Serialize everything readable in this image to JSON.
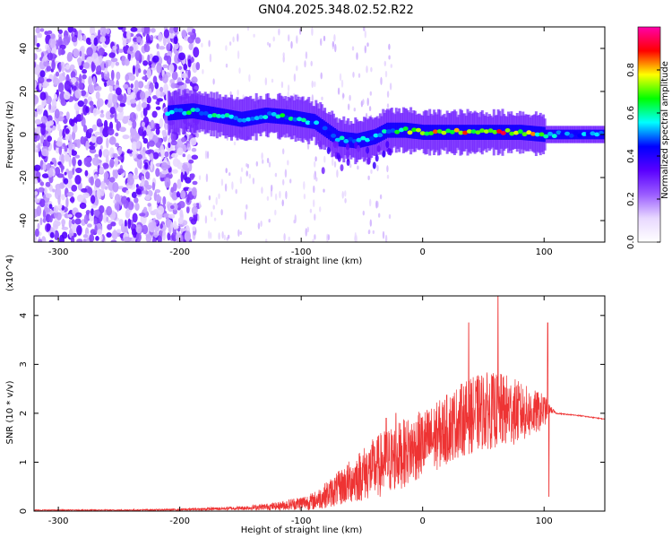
{
  "title": "GN04.2025.348.02.52.R22",
  "chart_data": [
    {
      "id": "spectrogram",
      "type": "heatmap",
      "xlabel": "Height of straight line (km)",
      "ylabel": "Frequency (Hz)",
      "xlim": [
        -320,
        150
      ],
      "ylim": [
        -50,
        50
      ],
      "xticks": [
        -300,
        -200,
        -100,
        0,
        100
      ],
      "yticks": [
        -40,
        -20,
        0,
        20,
        40
      ],
      "colorscale": [
        "#ffffff",
        "#e8d8ff",
        "#9a5cff",
        "#5a00ff",
        "#0000ff",
        "#00ffff",
        "#00ff00",
        "#ffff00",
        "#ff0000",
        "#ff00aa"
      ],
      "colorbar": {
        "label": "Normalized spectral amplitude",
        "range": [
          0,
          1
        ],
        "ticks": [
          "0.0",
          "0.2",
          "0.4",
          "0.6",
          "0.8"
        ]
      },
      "noise_region_x": [
        -320,
        -185
      ],
      "signal_track": [
        {
          "x": -210,
          "y": 10,
          "amp": 0.55
        },
        {
          "x": -190,
          "y": 11,
          "amp": 0.6
        },
        {
          "x": -170,
          "y": 9,
          "amp": 0.6
        },
        {
          "x": -150,
          "y": 7,
          "amp": 0.55
        },
        {
          "x": -130,
          "y": 9,
          "amp": 0.6
        },
        {
          "x": -110,
          "y": 8,
          "amp": 0.6
        },
        {
          "x": -90,
          "y": 6,
          "amp": 0.55
        },
        {
          "x": -80,
          "y": 2,
          "amp": 0.55
        },
        {
          "x": -70,
          "y": -2,
          "amp": 0.6
        },
        {
          "x": -55,
          "y": -3,
          "amp": 0.6
        },
        {
          "x": -40,
          "y": -1,
          "amp": 0.5
        },
        {
          "x": -30,
          "y": 2,
          "amp": 0.6
        },
        {
          "x": -15,
          "y": 2,
          "amp": 0.7
        },
        {
          "x": 0,
          "y": 1,
          "amp": 0.8
        },
        {
          "x": 20,
          "y": 1,
          "amp": 0.85
        },
        {
          "x": 40,
          "y": 1,
          "amp": 0.85
        },
        {
          "x": 60,
          "y": 1,
          "amp": 0.9
        },
        {
          "x": 80,
          "y": 1,
          "amp": 0.85
        },
        {
          "x": 100,
          "y": 0,
          "amp": 0.7
        },
        {
          "x": 120,
          "y": 0,
          "amp": 0.5
        },
        {
          "x": 150,
          "y": 0,
          "amp": 0.5
        }
      ]
    },
    {
      "id": "snr",
      "type": "line",
      "xlabel": "Height of straight line (km)",
      "ylabel": "SNR (10 * v/v)",
      "y_multiplier": "(x10^4)",
      "xlim": [
        -320,
        150
      ],
      "ylim": [
        0,
        4.4
      ],
      "xticks": [
        -300,
        -200,
        -100,
        0,
        100
      ],
      "yticks": [
        0,
        1,
        2,
        3,
        4
      ],
      "color": "#ee3333",
      "series": [
        {
          "envelope": [
            {
              "x": -320,
              "mean": 0.02,
              "spread": 0.01
            },
            {
              "x": -250,
              "mean": 0.02,
              "spread": 0.01
            },
            {
              "x": -200,
              "mean": 0.03,
              "spread": 0.02
            },
            {
              "x": -150,
              "mean": 0.06,
              "spread": 0.04
            },
            {
              "x": -120,
              "mean": 0.1,
              "spread": 0.08
            },
            {
              "x": -90,
              "mean": 0.2,
              "spread": 0.18
            },
            {
              "x": -70,
              "mean": 0.45,
              "spread": 0.35
            },
            {
              "x": -50,
              "mean": 0.75,
              "spread": 0.55
            },
            {
              "x": -30,
              "mean": 1.0,
              "spread": 0.7
            },
            {
              "x": -10,
              "mean": 1.25,
              "spread": 0.7
            },
            {
              "x": 10,
              "mean": 1.5,
              "spread": 0.7
            },
            {
              "x": 30,
              "mean": 1.85,
              "spread": 0.75
            },
            {
              "x": 50,
              "mean": 2.05,
              "spread": 0.8
            },
            {
              "x": 70,
              "mean": 2.05,
              "spread": 0.75
            },
            {
              "x": 90,
              "mean": 2.0,
              "spread": 0.5
            },
            {
              "x": 100,
              "mean": 2.05,
              "spread": 0.35
            },
            {
              "x": 104,
              "mean": 2.1,
              "spread": 0.1
            },
            {
              "x": 110,
              "mean": 2.0,
              "spread": 0.01
            },
            {
              "x": 130,
              "mean": 1.95,
              "spread": 0.01
            },
            {
              "x": 150,
              "mean": 1.88,
              "spread": 0.01
            }
          ],
          "spikes": [
            {
              "x": 62,
              "y": 4.4
            },
            {
              "x": 38,
              "y": 3.85
            },
            {
              "x": 103,
              "y": 3.85
            },
            {
              "x": 104,
              "y": 0.3
            },
            {
              "x": -22,
              "y": 2.0
            },
            {
              "x": -30,
              "y": 1.9
            }
          ]
        }
      ]
    }
  ]
}
